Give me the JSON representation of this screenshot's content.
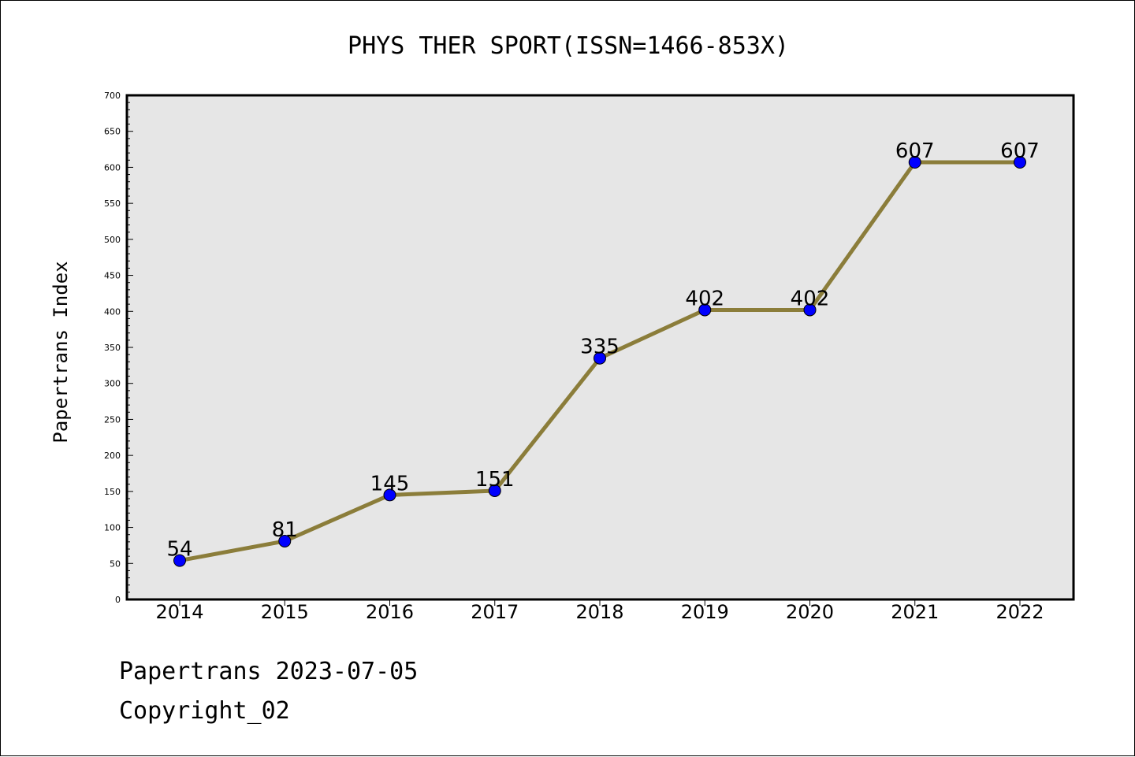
{
  "chart_data": {
    "type": "line",
    "title": "PHYS THER SPORT(ISSN=1466-853X)",
    "xlabel": "",
    "ylabel": "Papertrans Index",
    "categories": [
      "2014",
      "2015",
      "2016",
      "2017",
      "2018",
      "2019",
      "2020",
      "2021",
      "2022"
    ],
    "series": [
      {
        "values": [
          54,
          81,
          145,
          151,
          335,
          402,
          402,
          607,
          607
        ]
      }
    ],
    "ylim": [
      0,
      700
    ],
    "yticks": [
      0,
      50,
      100,
      150,
      200,
      250,
      300,
      350,
      400,
      450,
      500,
      550,
      600,
      650,
      700
    ],
    "grid": false,
    "data_labels": true,
    "colors": {
      "line": "#8b7d3a",
      "marker": "#0000ff",
      "plot_background": "#e6e6e6"
    }
  },
  "footer": {
    "date_line": "Papertrans 2023-07-05",
    "copyright": "Copyright_02"
  }
}
